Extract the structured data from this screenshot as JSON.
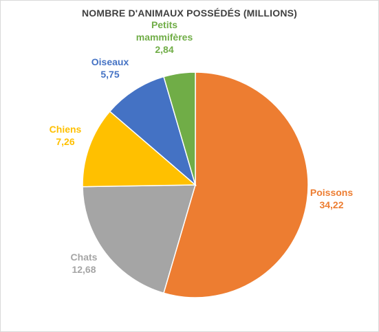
{
  "chart_data": {
    "type": "pie",
    "title": "NOMBRE D'ANIMAUX POSSÉDÉS (MILLIONS)",
    "slices": [
      {
        "name": "Poissons",
        "value": 34.22,
        "value_label": "34,22",
        "color": "#ED7D31",
        "label_color": "#ED7D31"
      },
      {
        "name": "Chats",
        "value": 12.68,
        "value_label": "12,68",
        "color": "#A5A5A5",
        "label_color": "#A5A5A5"
      },
      {
        "name": "Chiens",
        "value": 7.26,
        "value_label": "7,26",
        "color": "#FFC000",
        "label_color": "#FFC000"
      },
      {
        "name": "Oiseaux",
        "value": 5.75,
        "value_label": "5,75",
        "color": "#4472C4",
        "label_color": "#4472C4"
      },
      {
        "name": "Petits mammifères",
        "name_lines": [
          "Petits",
          "mammifères"
        ],
        "value": 2.84,
        "value_label": "2,84",
        "color": "#70AD47",
        "label_color": "#70AD47"
      }
    ],
    "start_angle": "12 o'clock",
    "direction": "clockwise",
    "legend": "none"
  }
}
